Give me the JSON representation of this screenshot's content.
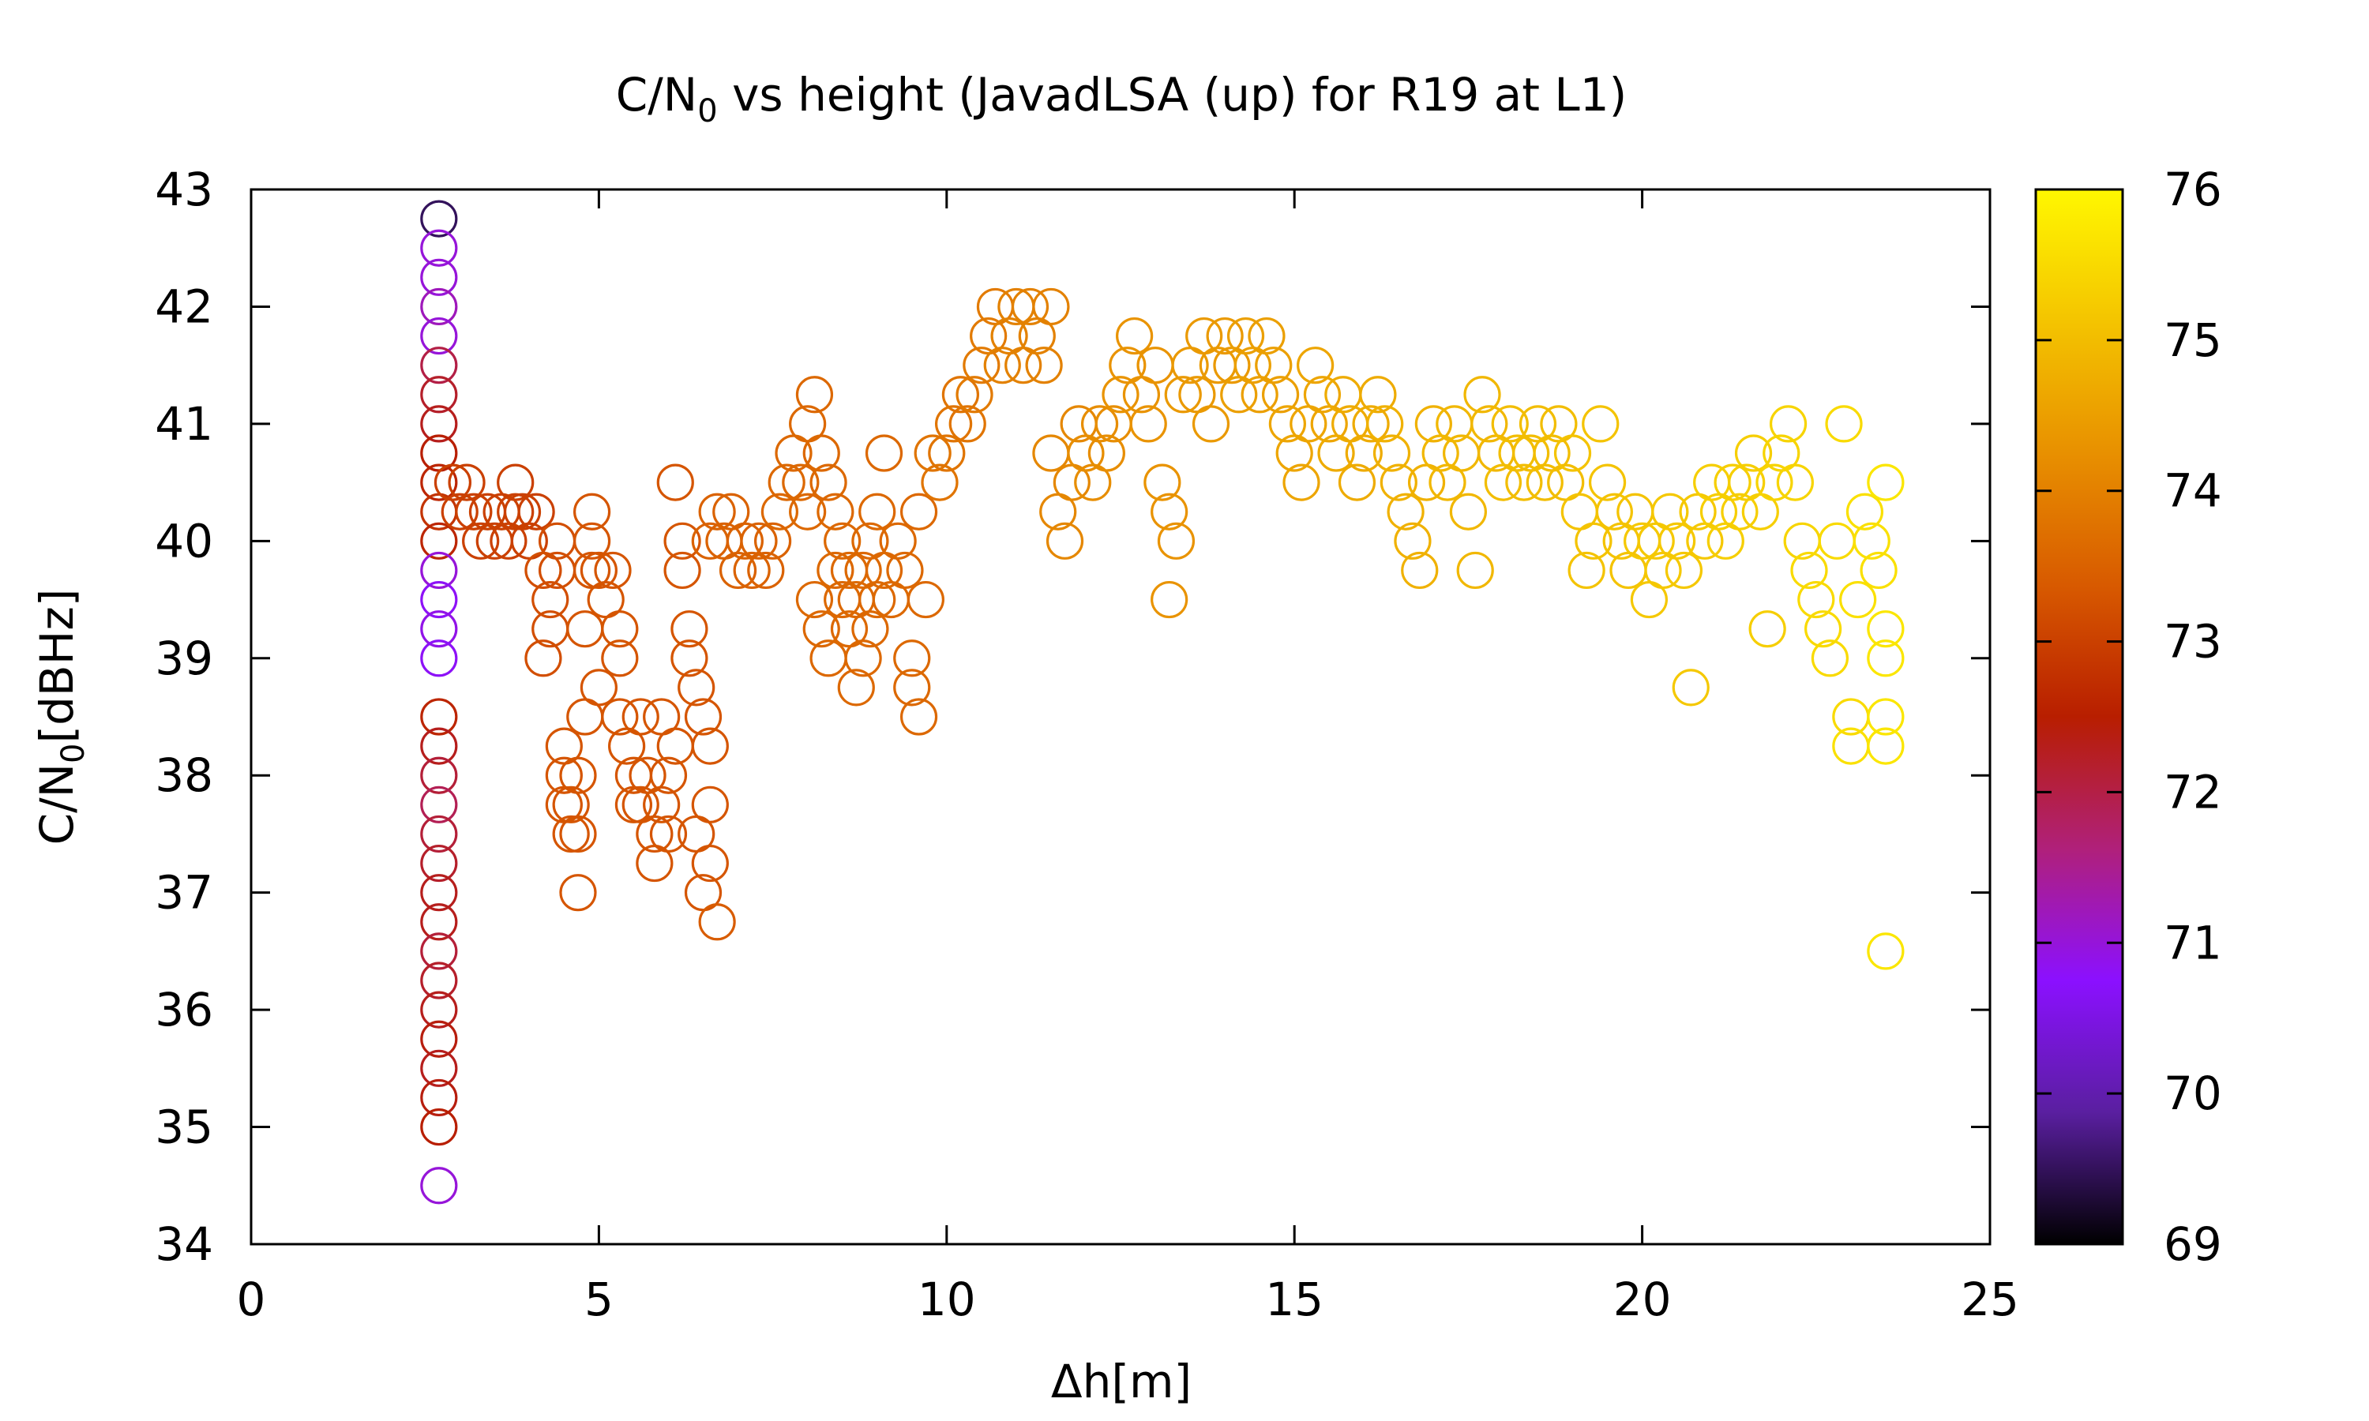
{
  "chart_data": {
    "type": "scatter",
    "title_main": "C/N",
    "title_sub": "0",
    "title_rest": " vs height (JavadLSA (up) for R19 at L1)",
    "xlabel": "Δh[m]",
    "ylabel_main": "C/N",
    "ylabel_sub": "0",
    "ylabel_rest": "[dBHz]",
    "xlim": [
      0,
      25
    ],
    "ylim": [
      34,
      43
    ],
    "xticks": [
      "0",
      "5",
      "10",
      "15",
      "20",
      "25"
    ],
    "yticks": [
      "34",
      "35",
      "36",
      "37",
      "38",
      "39",
      "40",
      "41",
      "42",
      "43"
    ],
    "colorbar": {
      "range": [
        69,
        76
      ],
      "ticks": [
        "69",
        "70",
        "71",
        "72",
        "73",
        "74",
        "75",
        "76"
      ],
      "palette": [
        "#000000",
        "#5a1fa0",
        "#8b10ff",
        "#b0207a",
        "#b81e00",
        "#d85a00",
        "#e89000",
        "#f4c400",
        "#fff700"
      ]
    },
    "marker": "open-circle",
    "grid": false,
    "points": [
      [
        2.7,
        42.75
      ],
      [
        2.7,
        42.5
      ],
      [
        2.7,
        42.25
      ],
      [
        2.7,
        42.0
      ],
      [
        2.7,
        41.75
      ],
      [
        2.7,
        41.5
      ],
      [
        2.7,
        41.25
      ],
      [
        2.7,
        41.0
      ],
      [
        2.7,
        40.75
      ],
      [
        2.7,
        40.5
      ],
      [
        2.7,
        40.25
      ],
      [
        2.7,
        40.0
      ],
      [
        2.7,
        39.75
      ],
      [
        2.7,
        39.5
      ],
      [
        2.7,
        39.25
      ],
      [
        2.7,
        39.0
      ],
      [
        2.7,
        38.5
      ],
      [
        2.7,
        38.25
      ],
      [
        2.7,
        38.0
      ],
      [
        2.7,
        37.75
      ],
      [
        2.7,
        37.5
      ],
      [
        2.7,
        37.25
      ],
      [
        2.7,
        37.0
      ],
      [
        2.7,
        36.75
      ],
      [
        2.7,
        36.5
      ],
      [
        2.7,
        36.25
      ],
      [
        2.7,
        36.0
      ],
      [
        2.7,
        35.75
      ],
      [
        2.7,
        35.5
      ],
      [
        2.7,
        35.25
      ],
      [
        2.7,
        35.0
      ],
      [
        2.7,
        34.5
      ],
      [
        2.9,
        40.5
      ],
      [
        3.0,
        40.25
      ],
      [
        3.1,
        40.5
      ],
      [
        3.2,
        40.25
      ],
      [
        3.3,
        40.0
      ],
      [
        3.4,
        40.25
      ],
      [
        3.5,
        40.0
      ],
      [
        3.6,
        40.25
      ],
      [
        3.7,
        40.0
      ],
      [
        3.8,
        40.25
      ],
      [
        3.8,
        40.5
      ],
      [
        3.9,
        40.25
      ],
      [
        4.0,
        40.0
      ],
      [
        4.1,
        40.25
      ],
      [
        4.2,
        39.75
      ],
      [
        4.3,
        39.5
      ],
      [
        4.3,
        39.25
      ],
      [
        4.2,
        39.0
      ],
      [
        4.4,
        40.0
      ],
      [
        4.4,
        39.75
      ],
      [
        4.5,
        38.25
      ],
      [
        4.5,
        38.0
      ],
      [
        4.5,
        37.75
      ],
      [
        4.6,
        37.5
      ],
      [
        4.6,
        37.75
      ],
      [
        4.7,
        38.0
      ],
      [
        4.7,
        37.5
      ],
      [
        4.8,
        38.5
      ],
      [
        4.7,
        37.0
      ],
      [
        4.8,
        39.25
      ],
      [
        4.9,
        39.75
      ],
      [
        4.9,
        40.0
      ],
      [
        4.9,
        40.25
      ],
      [
        5.0,
        38.75
      ],
      [
        5.0,
        39.75
      ],
      [
        5.1,
        39.5
      ],
      [
        5.2,
        39.75
      ],
      [
        5.3,
        39.25
      ],
      [
        5.3,
        39.0
      ],
      [
        5.3,
        38.5
      ],
      [
        5.4,
        38.25
      ],
      [
        5.5,
        38.0
      ],
      [
        5.5,
        37.75
      ],
      [
        5.6,
        37.75
      ],
      [
        5.6,
        38.5
      ],
      [
        5.7,
        38.0
      ],
      [
        5.8,
        37.5
      ],
      [
        5.8,
        37.25
      ],
      [
        5.9,
        37.75
      ],
      [
        5.9,
        38.5
      ],
      [
        6.0,
        38.0
      ],
      [
        6.0,
        37.5
      ],
      [
        6.1,
        38.25
      ],
      [
        6.1,
        40.5
      ],
      [
        6.2,
        40.0
      ],
      [
        6.2,
        39.75
      ],
      [
        6.3,
        39.25
      ],
      [
        6.3,
        39.0
      ],
      [
        6.4,
        38.75
      ],
      [
        6.4,
        37.5
      ],
      [
        6.5,
        37.0
      ],
      [
        6.5,
        38.5
      ],
      [
        6.6,
        38.25
      ],
      [
        6.6,
        37.75
      ],
      [
        6.6,
        37.25
      ],
      [
        6.7,
        36.75
      ],
      [
        6.6,
        40.0
      ],
      [
        6.7,
        40.25
      ],
      [
        6.8,
        40.0
      ],
      [
        6.9,
        40.25
      ],
      [
        7.0,
        39.75
      ],
      [
        7.1,
        40.0
      ],
      [
        7.2,
        39.75
      ],
      [
        7.3,
        40.0
      ],
      [
        7.4,
        39.75
      ],
      [
        7.5,
        40.0
      ],
      [
        7.6,
        40.25
      ],
      [
        7.7,
        40.5
      ],
      [
        7.8,
        40.75
      ],
      [
        7.9,
        40.5
      ],
      [
        8.0,
        41.0
      ],
      [
        8.0,
        40.25
      ],
      [
        8.1,
        41.25
      ],
      [
        8.1,
        39.5
      ],
      [
        8.2,
        39.25
      ],
      [
        8.2,
        40.75
      ],
      [
        8.3,
        40.5
      ],
      [
        8.3,
        39.0
      ],
      [
        8.4,
        40.25
      ],
      [
        8.4,
        39.75
      ],
      [
        8.5,
        39.5
      ],
      [
        8.5,
        40.0
      ],
      [
        8.6,
        39.25
      ],
      [
        8.6,
        39.75
      ],
      [
        8.7,
        38.75
      ],
      [
        8.7,
        39.5
      ],
      [
        8.8,
        39.0
      ],
      [
        8.8,
        39.75
      ],
      [
        8.9,
        39.25
      ],
      [
        8.9,
        40.0
      ],
      [
        9.0,
        39.5
      ],
      [
        9.0,
        40.25
      ],
      [
        9.1,
        39.75
      ],
      [
        9.1,
        40.75
      ],
      [
        9.2,
        39.5
      ],
      [
        9.3,
        40.0
      ],
      [
        9.4,
        39.75
      ],
      [
        9.5,
        39.0
      ],
      [
        9.5,
        38.75
      ],
      [
        9.6,
        38.5
      ],
      [
        9.7,
        39.5
      ],
      [
        9.6,
        40.25
      ],
      [
        9.8,
        40.75
      ],
      [
        9.9,
        40.5
      ],
      [
        10.0,
        40.75
      ],
      [
        10.1,
        41.0
      ],
      [
        10.2,
        41.25
      ],
      [
        10.3,
        41.0
      ],
      [
        10.4,
        41.25
      ],
      [
        10.5,
        41.5
      ],
      [
        10.6,
        41.75
      ],
      [
        10.7,
        42.0
      ],
      [
        10.8,
        41.5
      ],
      [
        10.9,
        41.75
      ],
      [
        11.0,
        42.0
      ],
      [
        11.1,
        41.5
      ],
      [
        11.2,
        42.0
      ],
      [
        11.3,
        41.75
      ],
      [
        11.4,
        41.5
      ],
      [
        11.5,
        42.0
      ],
      [
        11.5,
        40.75
      ],
      [
        11.6,
        40.25
      ],
      [
        11.7,
        40.0
      ],
      [
        11.8,
        40.5
      ],
      [
        11.9,
        41.0
      ],
      [
        12.0,
        40.75
      ],
      [
        12.1,
        40.5
      ],
      [
        12.2,
        41.0
      ],
      [
        12.3,
        40.75
      ],
      [
        12.4,
        41.0
      ],
      [
        12.5,
        41.25
      ],
      [
        12.6,
        41.5
      ],
      [
        12.7,
        41.75
      ],
      [
        12.8,
        41.25
      ],
      [
        12.9,
        41.0
      ],
      [
        13.0,
        41.5
      ],
      [
        13.1,
        40.5
      ],
      [
        13.2,
        40.25
      ],
      [
        13.3,
        40.0
      ],
      [
        13.2,
        39.5
      ],
      [
        13.4,
        41.25
      ],
      [
        13.5,
        41.5
      ],
      [
        13.6,
        41.25
      ],
      [
        13.7,
        41.75
      ],
      [
        13.8,
        41.0
      ],
      [
        13.9,
        41.5
      ],
      [
        14.0,
        41.75
      ],
      [
        14.1,
        41.5
      ],
      [
        14.2,
        41.25
      ],
      [
        14.3,
        41.75
      ],
      [
        14.4,
        41.5
      ],
      [
        14.5,
        41.25
      ],
      [
        14.6,
        41.75
      ],
      [
        14.7,
        41.5
      ],
      [
        14.8,
        41.25
      ],
      [
        14.9,
        41.0
      ],
      [
        15.0,
        40.75
      ],
      [
        15.1,
        40.5
      ],
      [
        15.2,
        41.0
      ],
      [
        15.3,
        41.5
      ],
      [
        15.4,
        41.25
      ],
      [
        15.5,
        41.0
      ],
      [
        15.6,
        40.75
      ],
      [
        15.7,
        41.25
      ],
      [
        15.8,
        41.0
      ],
      [
        15.9,
        40.5
      ],
      [
        16.0,
        40.75
      ],
      [
        16.1,
        41.0
      ],
      [
        16.2,
        41.25
      ],
      [
        16.3,
        41.0
      ],
      [
        16.4,
        40.75
      ],
      [
        16.5,
        40.5
      ],
      [
        16.6,
        40.25
      ],
      [
        16.7,
        40.0
      ],
      [
        16.8,
        39.75
      ],
      [
        16.9,
        40.5
      ],
      [
        17.0,
        41.0
      ],
      [
        17.1,
        40.75
      ],
      [
        17.2,
        40.5
      ],
      [
        17.3,
        41.0
      ],
      [
        17.4,
        40.75
      ],
      [
        17.5,
        40.25
      ],
      [
        17.6,
        39.75
      ],
      [
        17.7,
        41.25
      ],
      [
        17.8,
        41.0
      ],
      [
        17.9,
        40.75
      ],
      [
        18.0,
        40.5
      ],
      [
        18.1,
        41.0
      ],
      [
        18.2,
        40.75
      ],
      [
        18.3,
        40.5
      ],
      [
        18.4,
        40.75
      ],
      [
        18.5,
        41.0
      ],
      [
        18.6,
        40.5
      ],
      [
        18.7,
        40.75
      ],
      [
        18.8,
        41.0
      ],
      [
        18.9,
        40.5
      ],
      [
        19.0,
        40.75
      ],
      [
        19.1,
        40.25
      ],
      [
        19.2,
        39.75
      ],
      [
        19.3,
        40.0
      ],
      [
        19.4,
        41.0
      ],
      [
        19.5,
        40.5
      ],
      [
        19.6,
        40.25
      ],
      [
        19.7,
        40.0
      ],
      [
        19.8,
        39.75
      ],
      [
        19.9,
        40.25
      ],
      [
        20.0,
        40.0
      ],
      [
        20.1,
        39.5
      ],
      [
        20.2,
        40.0
      ],
      [
        20.3,
        39.75
      ],
      [
        20.4,
        40.25
      ],
      [
        20.5,
        40.0
      ],
      [
        20.6,
        39.75
      ],
      [
        20.7,
        38.75
      ],
      [
        20.8,
        40.25
      ],
      [
        20.9,
        40.0
      ],
      [
        21.0,
        40.5
      ],
      [
        21.1,
        40.25
      ],
      [
        21.2,
        40.0
      ],
      [
        21.3,
        40.5
      ],
      [
        21.4,
        40.25
      ],
      [
        21.5,
        40.5
      ],
      [
        21.6,
        40.75
      ],
      [
        21.7,
        40.25
      ],
      [
        21.8,
        39.25
      ],
      [
        21.9,
        40.5
      ],
      [
        22.0,
        40.75
      ],
      [
        22.1,
        41.0
      ],
      [
        22.2,
        40.5
      ],
      [
        22.3,
        40.0
      ],
      [
        22.4,
        39.75
      ],
      [
        22.5,
        39.5
      ],
      [
        22.6,
        39.25
      ],
      [
        22.7,
        39.0
      ],
      [
        22.8,
        40.0
      ],
      [
        22.9,
        41.0
      ],
      [
        23.0,
        38.5
      ],
      [
        23.0,
        38.25
      ],
      [
        23.1,
        39.5
      ],
      [
        23.2,
        40.25
      ],
      [
        23.3,
        40.0
      ],
      [
        23.4,
        39.75
      ],
      [
        23.5,
        39.0
      ],
      [
        23.5,
        38.5
      ],
      [
        23.5,
        38.25
      ],
      [
        23.5,
        36.5
      ],
      [
        23.5,
        40.5
      ],
      [
        23.5,
        39.25
      ]
    ],
    "point_colors": [
      69.5,
      71,
      71,
      71.2,
      71,
      72,
      72.2,
      72.3,
      72.5,
      72.6,
      72.8,
      72.6,
      71,
      70.8,
      70.9,
      70.8,
      72.6,
      72.3,
      72.1,
      71.9,
      72.1,
      72.2,
      72.3,
      72.3,
      72.1,
      72.2,
      72.3,
      72.4,
      72.3,
      72.4,
      72.5,
      71,
      73,
      73,
      73,
      73,
      73,
      73,
      73,
      73,
      73,
      73,
      73,
      73,
      73,
      73,
      73.2,
      73.2,
      73.2,
      73.2,
      73.2,
      73.2,
      73.3,
      73.3,
      73.3,
      73.3,
      73.3,
      73.3,
      73.3,
      73.3,
      73.3,
      73.3,
      73.3,
      73.3,
      73.3,
      73.3,
      73.3,
      73.3,
      73.3,
      73.3,
      73.3,
      73.3,
      73.3,
      73.3,
      73.3,
      73.3,
      73.3,
      73.3,
      73.3,
      73.3,
      73.3,
      73.3,
      73.3,
      73.3,
      73.3,
      73.3,
      73.3,
      73.3,
      73.3,
      73.3,
      73.3,
      73.3,
      73.3,
      73.3,
      73.3,
      73.3,
      73.3,
      73.4,
      73.5,
      73.5,
      73.5,
      73.5,
      73.5,
      73.5,
      73.5,
      73.5,
      73.5,
      73.5,
      73.6,
      73.6,
      73.6,
      73.6,
      73.6,
      73.6,
      73.6,
      73.6,
      73.6,
      73.6,
      73.6,
      73.6,
      73.6,
      73.6,
      73.6,
      73.6,
      73.6,
      73.6,
      73.6,
      73.6,
      73.6,
      73.6,
      73.6,
      73.6,
      73.6,
      73.6,
      73.6,
      73.6,
      73.6,
      73.6,
      73.6,
      73.6,
      73.6,
      73.6,
      73.6,
      73.6,
      73.8,
      73.8,
      73.8,
      73.8,
      73.8,
      73.8,
      73.9,
      73.9,
      73.9,
      73.9,
      74,
      74,
      74,
      74,
      74,
      74,
      74,
      74,
      74.1,
      74.1,
      74.1,
      74.1,
      74.1,
      74.2,
      74.2,
      74.2,
      74.2,
      74.2,
      74.3,
      74.3,
      74.3,
      74.3,
      74.3,
      74.3,
      74.3,
      74.3,
      74.3,
      74.3,
      74.4,
      74.4,
      74.4,
      74.4,
      74.4,
      74.4,
      74.4,
      74.4,
      74.5,
      74.5,
      74.5,
      74.5,
      74.5,
      74.5,
      74.5,
      74.6,
      74.6,
      74.6,
      74.6,
      74.6,
      74.6,
      74.6,
      74.7,
      74.7,
      74.7,
      74.7,
      74.7,
      74.7,
      74.7,
      74.8,
      74.8,
      74.8,
      74.8,
      74.8,
      74.8,
      74.8,
      74.8,
      74.9,
      74.9,
      74.9,
      74.9,
      74.9,
      74.9,
      74.9,
      74.9,
      74.9,
      75,
      75,
      75,
      75,
      75,
      75,
      75,
      75,
      75,
      75,
      75.1,
      75.1,
      75.1,
      75.1,
      75.1,
      75.1,
      75.1,
      75.1,
      75.1,
      75.1,
      75.2,
      75.2,
      75.2,
      75.2,
      75.2,
      75.2,
      75.2,
      75.2,
      75.2,
      75.2,
      75.3,
      75.3,
      75.3,
      75.3,
      75.3,
      75.3,
      75.3,
      75.3,
      75.3,
      75.4,
      75.4,
      75.4,
      75.4,
      75.4,
      75.5,
      75.5,
      75.5,
      75.5,
      75.5,
      75.5,
      75.5,
      75.6,
      75.6,
      75.6,
      75.6,
      75.6,
      75.7,
      75.7,
      75.7,
      75.7,
      75.7,
      75.7
    ]
  }
}
